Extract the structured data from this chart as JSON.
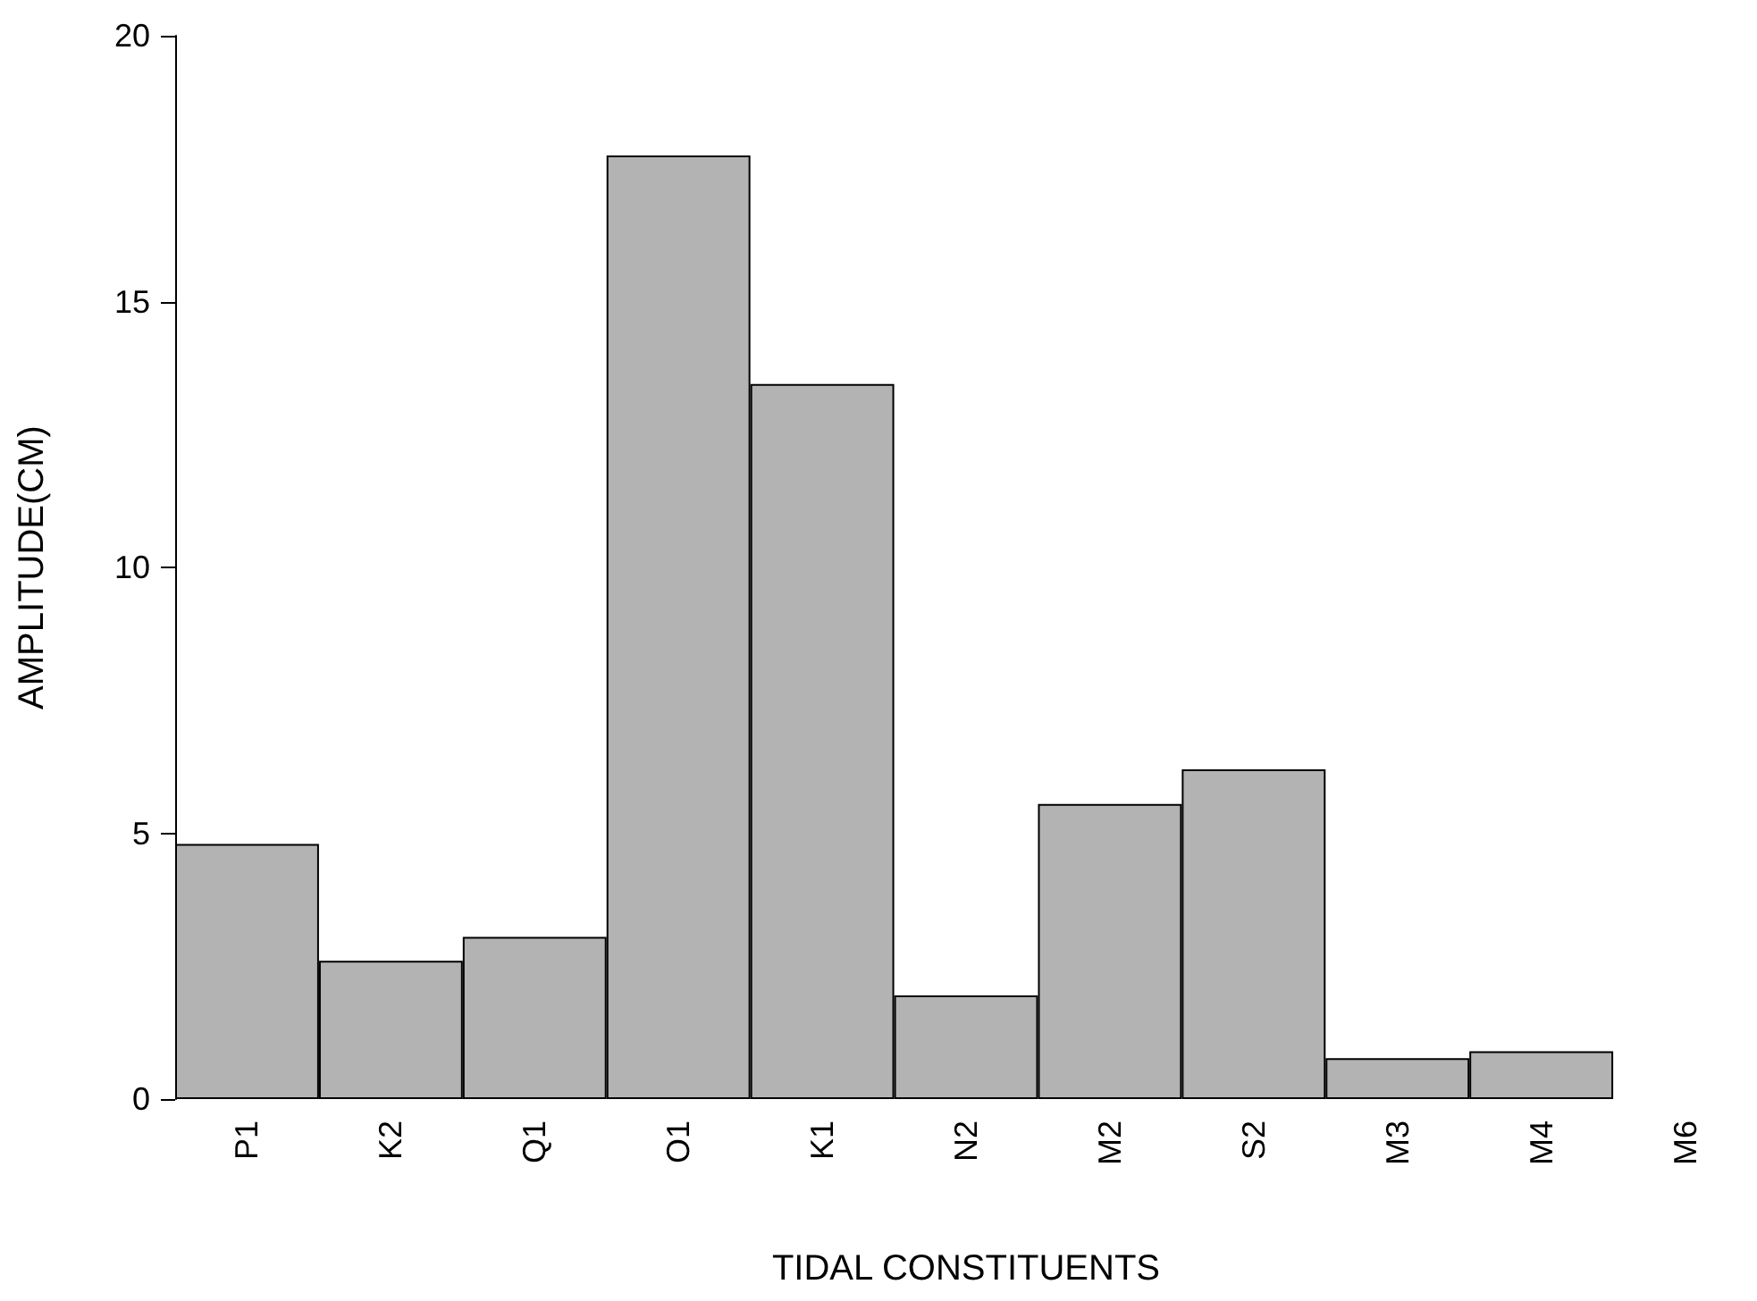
{
  "chart_data": {
    "type": "bar",
    "xlabel": "TIDAL CONSTITUENTS",
    "ylabel": "AMPLITUDE(CM)",
    "categories": [
      "P1",
      "K2",
      "Q1",
      "O1",
      "K1",
      "N2",
      "M2",
      "S2",
      "M3",
      "M4",
      "M6"
    ],
    "values": [
      4.8,
      2.6,
      3.05,
      17.75,
      13.45,
      1.95,
      5.55,
      6.2,
      0.77,
      0.9,
      null
    ],
    "color": "#b3b3b3",
    "ylim": [
      0,
      20
    ],
    "yticks": [
      0,
      5,
      10,
      15,
      20
    ],
    "grid": false
  }
}
